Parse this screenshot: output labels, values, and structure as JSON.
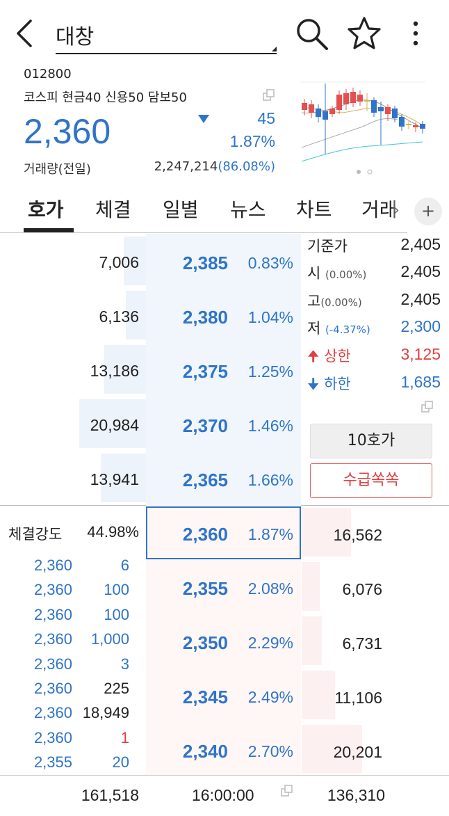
{
  "header": {
    "title": "대창"
  },
  "stock": {
    "code": "012800",
    "market_info": "코스피 현금40 신용50 담보50",
    "price": "2,360",
    "change": "45",
    "change_rate": "1.87%",
    "volume_label": "거래량(전일)",
    "volume": "2,247,214",
    "volume_ratio": "(86.08%)"
  },
  "tabs": [
    {
      "label": "호가",
      "active": true
    },
    {
      "label": "체결",
      "active": false
    },
    {
      "label": "일별",
      "active": false
    },
    {
      "label": "뉴스",
      "active": false
    },
    {
      "label": "차트",
      "active": false
    },
    {
      "label": "거래",
      "active": false
    }
  ],
  "tab_plus": "+",
  "asks": [
    {
      "qty": "7,006",
      "price": "2,385",
      "rate": "0.83%",
      "depth": 0.21
    },
    {
      "qty": "6,136",
      "price": "2,380",
      "rate": "1.04%",
      "depth": 0.19
    },
    {
      "qty": "13,186",
      "price": "2,375",
      "rate": "1.25%",
      "depth": 0.4
    },
    {
      "qty": "20,984",
      "price": "2,370",
      "rate": "1.46%",
      "depth": 0.64
    },
    {
      "qty": "13,941",
      "price": "2,365",
      "rate": "1.66%",
      "depth": 0.43
    }
  ],
  "right_info": {
    "base_label": "기준가",
    "base_value": "2,405",
    "open_label": "시",
    "open_sub": "(0.00%)",
    "open_value": "2,405",
    "high_label": "고",
    "high_sub": "(0.00%)",
    "high_value": "2,405",
    "low_label": "저",
    "low_sub": "(-4.37%)",
    "low_value": "2,300",
    "upper_label": "상한",
    "upper_value": "3,125",
    "lower_label": "하한",
    "lower_value": "1,685"
  },
  "buttons": {
    "ten_quote": "10호가",
    "supply": "수급쏙쏙"
  },
  "strength": {
    "label": "체결강도",
    "value": "44.98%"
  },
  "current": {
    "price": "2,360",
    "rate": "1.87%",
    "bid_qty": "16,562",
    "depth": 0.47
  },
  "bids": [
    {
      "qty": "6,076",
      "price": "2,355",
      "rate": "2.08%",
      "depth": 0.17
    },
    {
      "qty": "6,731",
      "price": "2,350",
      "rate": "2.29%",
      "depth": 0.19
    },
    {
      "qty": "11,106",
      "price": "2,345",
      "rate": "2.49%",
      "depth": 0.32
    },
    {
      "qty": "20,201",
      "price": "2,340",
      "rate": "2.70%",
      "depth": 0.58
    }
  ],
  "trades": [
    {
      "price": "2,360",
      "qty": "6",
      "side": "sell"
    },
    {
      "price": "2,360",
      "qty": "100",
      "side": "sell"
    },
    {
      "price": "2,360",
      "qty": "100",
      "side": "sell"
    },
    {
      "price": "2,360",
      "qty": "1,000",
      "side": "sell"
    },
    {
      "price": "2,360",
      "qty": "3",
      "side": "sell"
    },
    {
      "price": "2,360",
      "qty": "225",
      "side": "neutral"
    },
    {
      "price": "2,360",
      "qty": "18,949",
      "side": "neutral"
    },
    {
      "price": "2,360",
      "qty": "1",
      "side": "buy"
    },
    {
      "price": "2,355",
      "qty": "20",
      "side": "sell"
    }
  ],
  "footer": {
    "ask_total": "161,518",
    "time": "16:00:00",
    "bid_total": "136,310"
  },
  "colors": {
    "blue": "#2f74c8",
    "red": "#e04040"
  }
}
